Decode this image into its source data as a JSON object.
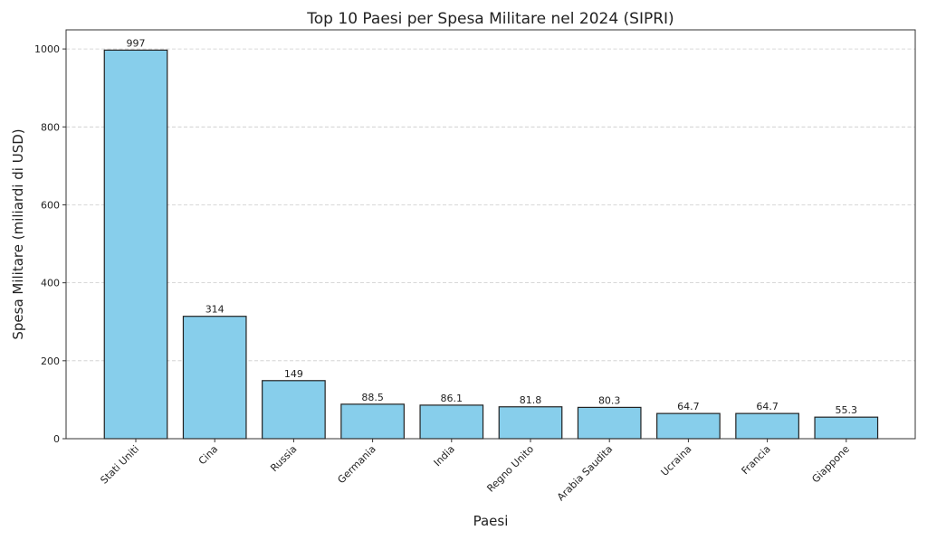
{
  "chart_data": {
    "type": "bar",
    "title": "Top 10 Paesi per Spesa Militare nel 2024 (SIPRI)",
    "xlabel": "Paesi",
    "ylabel": "Spesa Militare (miliardi di USD)",
    "categories": [
      "Stati Uniti",
      "Cina",
      "Russia",
      "Germania",
      "India",
      "Regno Unito",
      "Arabia Saudita",
      "Ucraina",
      "Francia",
      "Giappone"
    ],
    "values": [
      997,
      314,
      149,
      88.5,
      86.1,
      81.8,
      80.3,
      64.7,
      64.7,
      55.3
    ],
    "value_labels": [
      "997",
      "314",
      "149",
      "88.5",
      "86.1",
      "81.8",
      "80.3",
      "64.7",
      "64.7",
      "55.3"
    ],
    "yticks": [
      0,
      200,
      400,
      600,
      800,
      1000
    ],
    "ytick_labels": [
      "0",
      "200",
      "400",
      "600",
      "800",
      "1000"
    ],
    "ylim": [
      0,
      1049
    ],
    "grid": "y-dashed",
    "bar_color": "#87CEEB",
    "edge_color": "#222222"
  }
}
